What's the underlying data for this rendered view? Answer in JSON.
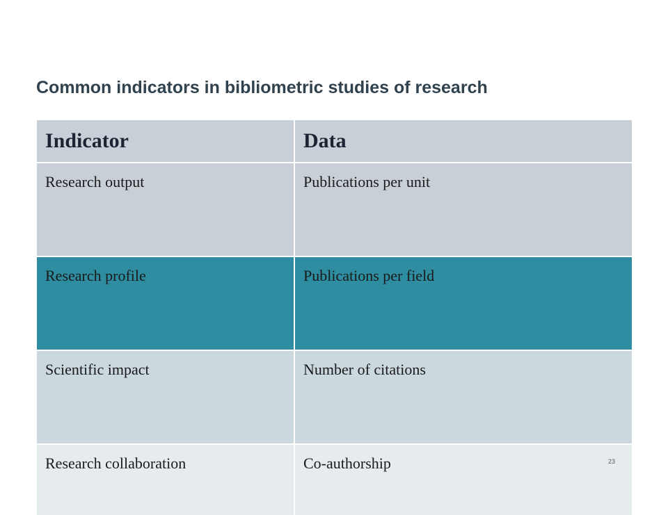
{
  "slide": {
    "title": "Common indicators in bibliometric studies of research",
    "page_number": "23"
  },
  "table": {
    "headers": [
      "Indicator",
      "Data"
    ],
    "rows": [
      {
        "indicator": "Research output",
        "data": "Publications per unit"
      },
      {
        "indicator": "Research profile",
        "data": "Publications per field"
      },
      {
        "indicator": "Scientific impact",
        "data": "Number of citations"
      },
      {
        "indicator": "Research collaboration",
        "data": "Co-authorship"
      }
    ]
  },
  "colors": {
    "header_bg": "#c9cfd7",
    "row1_bg": "#c9cfd7",
    "row2_bg": "#2e8da0",
    "row3_bg": "#cbd8de",
    "row4_bg": "#e6ebee",
    "title_text": "#31424f"
  }
}
